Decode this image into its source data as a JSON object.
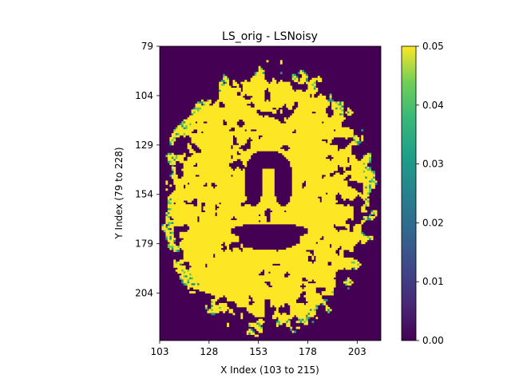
{
  "chart_data": {
    "type": "heatmap",
    "title": "LS_orig - LSNoisy",
    "xlabel": "X Index (103 to 215)",
    "ylabel": "Y Index (79 to 228)",
    "xlim": [
      103,
      215
    ],
    "ylim": [
      79,
      228
    ],
    "xticks": [
      "103",
      "128",
      "153",
      "178",
      "203"
    ],
    "yticks": [
      "79",
      "104",
      "129",
      "154",
      "179",
      "204"
    ],
    "colorbar": {
      "vmin": 0.0,
      "vmax": 0.05,
      "ticks": [
        "0.00",
        "0.01",
        "0.02",
        "0.03",
        "0.04",
        "0.05"
      ],
      "colormap": "viridis"
    },
    "colors": {
      "low": "#440154",
      "high": "#fde725",
      "mid_teal": "#21918c",
      "mid_green": "#5ec962"
    },
    "description_of_values": "difference map: brain tissue mostly saturated at 0.05 (yellow); background, ventricles and sulci near 0.00 (purple)"
  }
}
